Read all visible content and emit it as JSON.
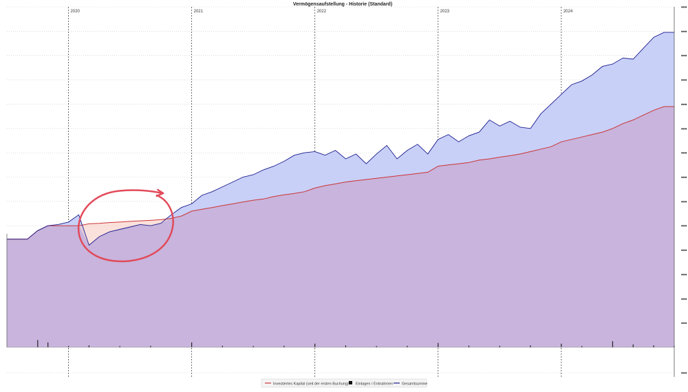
{
  "chart_data": {
    "type": "area",
    "title": "Vermögensaufstellung - Historie (Standard)",
    "x_axis": {
      "range": [
        "2019-07",
        "2024-12"
      ],
      "year_labels": [
        {
          "label": "2020",
          "x": "2020-01"
        },
        {
          "label": "2021",
          "x": "2021-01"
        },
        {
          "label": "2022",
          "x": "2022-01"
        },
        {
          "label": "2023",
          "x": "2023-01"
        },
        {
          "label": "2024",
          "x": "2024-01"
        }
      ],
      "grid": "dashed-vertical"
    },
    "y_axis": {
      "side": "right",
      "range": [
        0,
        14
      ],
      "tick_labels": [
        "•••",
        "•••",
        "•••",
        "•••",
        "•••",
        "•••",
        "•••",
        "•••",
        "•••",
        "•••",
        "•••",
        "•••",
        "•••",
        "•••"
      ],
      "grid": "dotted-horizontal"
    },
    "series": [
      {
        "name": "Investiertes Kapital (seit der ersten Buchung)",
        "color": "#cc3333",
        "fill": "#f7c8c0",
        "points": [
          [
            "2019-07",
            4.45
          ],
          [
            "2019-09",
            4.45
          ],
          [
            "2019-10",
            4.8
          ],
          [
            "2019-11",
            5.0
          ],
          [
            "2019-12",
            5.0
          ],
          [
            "2020-01",
            5.0
          ],
          [
            "2020-02",
            5.0
          ],
          [
            "2020-03",
            5.08
          ],
          [
            "2020-04",
            5.1
          ],
          [
            "2020-05",
            5.13
          ],
          [
            "2020-06",
            5.15
          ],
          [
            "2020-07",
            5.18
          ],
          [
            "2020-08",
            5.2
          ],
          [
            "2020-09",
            5.22
          ],
          [
            "2020-10",
            5.25
          ],
          [
            "2020-11",
            5.3
          ],
          [
            "2020-12",
            5.4
          ],
          [
            "2021-01",
            5.6
          ],
          [
            "2021-02",
            5.68
          ],
          [
            "2021-03",
            5.75
          ],
          [
            "2021-04",
            5.83
          ],
          [
            "2021-05",
            5.9
          ],
          [
            "2021-06",
            5.98
          ],
          [
            "2021-07",
            6.05
          ],
          [
            "2021-08",
            6.1
          ],
          [
            "2021-09",
            6.2
          ],
          [
            "2021-10",
            6.27
          ],
          [
            "2021-11",
            6.33
          ],
          [
            "2021-12",
            6.4
          ],
          [
            "2022-01",
            6.55
          ],
          [
            "2022-02",
            6.65
          ],
          [
            "2022-03",
            6.72
          ],
          [
            "2022-04",
            6.8
          ],
          [
            "2022-05",
            6.85
          ],
          [
            "2022-06",
            6.9
          ],
          [
            "2022-07",
            6.95
          ],
          [
            "2022-08",
            7.0
          ],
          [
            "2022-09",
            7.05
          ],
          [
            "2022-10",
            7.1
          ],
          [
            "2022-11",
            7.15
          ],
          [
            "2022-12",
            7.2
          ],
          [
            "2023-01",
            7.45
          ],
          [
            "2023-02",
            7.5
          ],
          [
            "2023-03",
            7.55
          ],
          [
            "2023-04",
            7.6
          ],
          [
            "2023-05",
            7.7
          ],
          [
            "2023-06",
            7.75
          ],
          [
            "2023-07",
            7.82
          ],
          [
            "2023-08",
            7.88
          ],
          [
            "2023-09",
            7.95
          ],
          [
            "2023-10",
            8.05
          ],
          [
            "2023-11",
            8.15
          ],
          [
            "2023-12",
            8.25
          ],
          [
            "2024-01",
            8.45
          ],
          [
            "2024-02",
            8.55
          ],
          [
            "2024-03",
            8.65
          ],
          [
            "2024-04",
            8.75
          ],
          [
            "2024-05",
            8.85
          ],
          [
            "2024-06",
            9.0
          ],
          [
            "2024-07",
            9.2
          ],
          [
            "2024-08",
            9.35
          ],
          [
            "2024-09",
            9.55
          ],
          [
            "2024-10",
            9.75
          ],
          [
            "2024-11",
            9.9
          ],
          [
            "2024-12",
            9.9
          ]
        ]
      },
      {
        "name": "Gesamtsumme",
        "color": "#1a1a8c",
        "fill": "#c8d0f8",
        "points": [
          [
            "2019-07",
            4.45
          ],
          [
            "2019-09",
            4.45
          ],
          [
            "2019-10",
            4.8
          ],
          [
            "2019-11",
            5.0
          ],
          [
            "2019-12",
            5.05
          ],
          [
            "2020-01",
            5.15
          ],
          [
            "2020-02",
            5.45
          ],
          [
            "2020-03",
            4.2
          ],
          [
            "2020-04",
            4.55
          ],
          [
            "2020-05",
            4.75
          ],
          [
            "2020-06",
            4.85
          ],
          [
            "2020-07",
            4.95
          ],
          [
            "2020-08",
            5.05
          ],
          [
            "2020-09",
            5.0
          ],
          [
            "2020-10",
            5.1
          ],
          [
            "2020-11",
            5.45
          ],
          [
            "2020-12",
            5.75
          ],
          [
            "2021-01",
            5.9
          ],
          [
            "2021-02",
            6.25
          ],
          [
            "2021-03",
            6.4
          ],
          [
            "2021-04",
            6.6
          ],
          [
            "2021-05",
            6.8
          ],
          [
            "2021-06",
            7.0
          ],
          [
            "2021-07",
            7.1
          ],
          [
            "2021-08",
            7.3
          ],
          [
            "2021-09",
            7.45
          ],
          [
            "2021-10",
            7.65
          ],
          [
            "2021-11",
            7.9
          ],
          [
            "2021-12",
            8.0
          ],
          [
            "2022-01",
            8.05
          ],
          [
            "2022-02",
            7.9
          ],
          [
            "2022-03",
            8.1
          ],
          [
            "2022-04",
            7.75
          ],
          [
            "2022-05",
            7.95
          ],
          [
            "2022-06",
            7.55
          ],
          [
            "2022-07",
            7.95
          ],
          [
            "2022-08",
            8.3
          ],
          [
            "2022-09",
            7.75
          ],
          [
            "2022-10",
            8.1
          ],
          [
            "2022-11",
            8.35
          ],
          [
            "2022-12",
            7.95
          ],
          [
            "2023-01",
            8.55
          ],
          [
            "2023-02",
            8.75
          ],
          [
            "2023-03",
            8.45
          ],
          [
            "2023-04",
            8.7
          ],
          [
            "2023-05",
            8.85
          ],
          [
            "2023-06",
            9.35
          ],
          [
            "2023-07",
            9.1
          ],
          [
            "2023-08",
            9.3
          ],
          [
            "2023-09",
            9.05
          ],
          [
            "2023-10",
            9.0
          ],
          [
            "2023-11",
            9.6
          ],
          [
            "2023-12",
            10.0
          ],
          [
            "2024-01",
            10.4
          ],
          [
            "2024-02",
            10.8
          ],
          [
            "2024-03",
            10.95
          ],
          [
            "2024-04",
            11.2
          ],
          [
            "2024-05",
            11.55
          ],
          [
            "2024-06",
            11.65
          ],
          [
            "2024-07",
            11.9
          ],
          [
            "2024-08",
            11.85
          ],
          [
            "2024-09",
            12.3
          ],
          [
            "2024-10",
            12.75
          ],
          [
            "2024-11",
            12.95
          ],
          [
            "2024-12",
            12.95
          ]
        ]
      },
      {
        "name": "Einlagen / Entnahmen",
        "type": "bar",
        "color": "#222222",
        "points": [
          [
            "2019-10",
            0.3
          ],
          [
            "2019-11",
            0.2
          ],
          [
            "2020-01",
            0.05
          ],
          [
            "2020-03",
            0.08
          ],
          [
            "2020-06",
            0.05
          ],
          [
            "2020-09",
            0.06
          ],
          [
            "2021-01",
            0.2
          ],
          [
            "2021-04",
            0.06
          ],
          [
            "2021-07",
            0.05
          ],
          [
            "2021-10",
            0.06
          ],
          [
            "2022-01",
            0.15
          ],
          [
            "2022-04",
            0.08
          ],
          [
            "2022-07",
            0.05
          ],
          [
            "2022-10",
            0.06
          ],
          [
            "2023-01",
            0.18
          ],
          [
            "2023-04",
            0.07
          ],
          [
            "2023-07",
            0.06
          ],
          [
            "2023-10",
            0.08
          ],
          [
            "2024-01",
            0.15
          ],
          [
            "2024-03",
            0.05
          ],
          [
            "2024-06",
            0.25
          ],
          [
            "2024-08",
            0.12
          ],
          [
            "2024-10",
            0.08
          ],
          [
            "2024-12",
            0.06
          ]
        ]
      }
    ],
    "legend": {
      "position": "bottom",
      "entries": [
        {
          "label": "Investiertes Kapital (seit der ersten Buchung)",
          "kind": "line",
          "color": "#cc3333"
        },
        {
          "label": "Einlagen / Entnahmen",
          "kind": "square",
          "color": "#111111"
        },
        {
          "label": "Gesamtsumme",
          "kind": "line",
          "color": "#1a1a8c"
        }
      ]
    },
    "annotation": {
      "kind": "hand-drawn circle with arrow",
      "color": "#e24a5a",
      "around": [
        "2020-02",
        "2020-11"
      ]
    }
  }
}
